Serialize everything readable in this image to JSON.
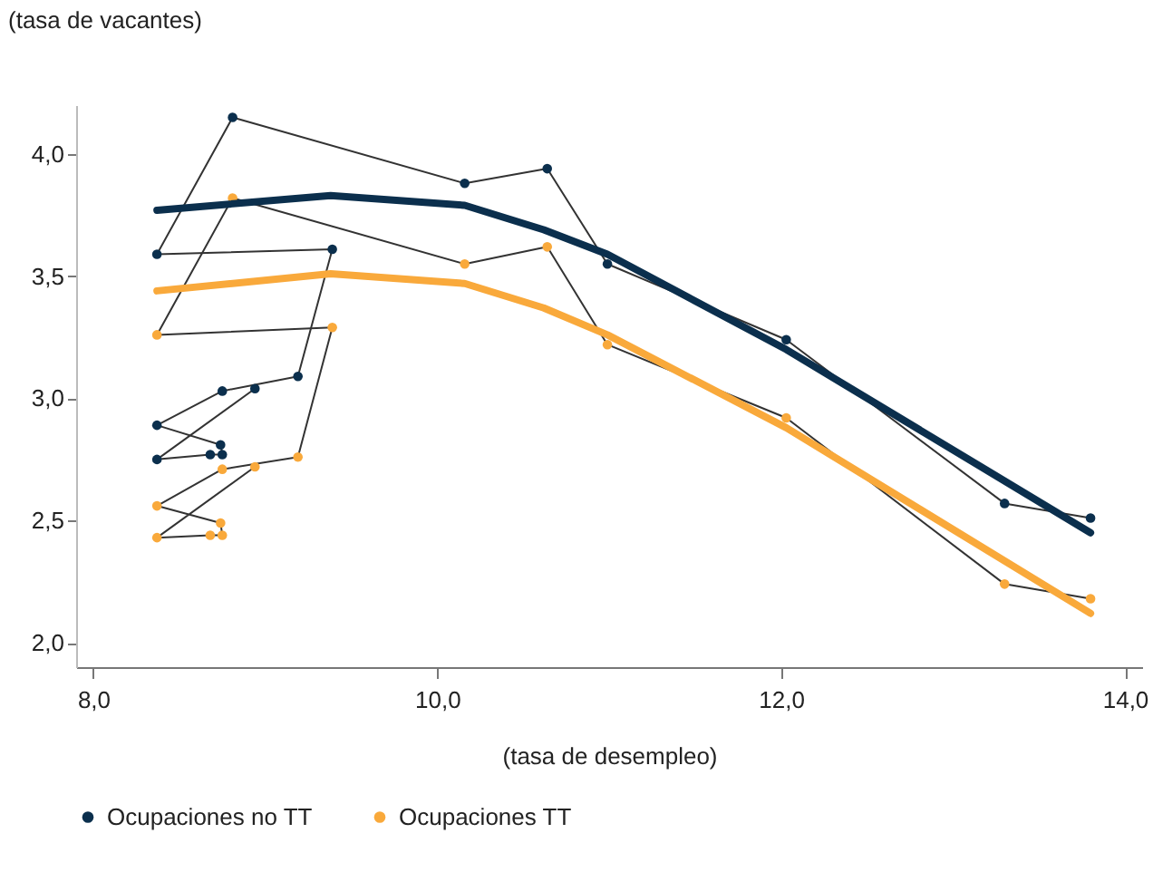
{
  "chart_data": {
    "type": "line",
    "xlabel": "(tasa de desempleo)",
    "ylabel": "(tasa de vacantes)",
    "xlim": [
      7.9,
      14.1
    ],
    "xticks": [
      {
        "value": 8,
        "label": "8,0"
      },
      {
        "value": 10,
        "label": "10,0"
      },
      {
        "value": 12,
        "label": "12,0"
      },
      {
        "value": 14,
        "label": "14,0"
      }
    ],
    "ylim": [
      1.9,
      4.2
    ],
    "yticks": [
      {
        "value": 2,
        "label": "2,0"
      },
      {
        "value": 2.5,
        "label": "2,5"
      },
      {
        "value": 3,
        "label": "3,0"
      },
      {
        "value": 3.5,
        "label": "3,5"
      },
      {
        "value": 4,
        "label": "4,0"
      }
    ],
    "grid": false,
    "legend": "bottom",
    "marker": "circle",
    "series": [
      {
        "name": "Ocupaciones no TT",
        "color": "#0b2f4d",
        "x": [
          13.8,
          13.3,
          12.03,
          10.99,
          10.64,
          10.16,
          8.81,
          8.37,
          9.39,
          9.19,
          8.75,
          8.37,
          8.74,
          8.75,
          8.68,
          8.37,
          8.94
        ],
        "values": [
          2.51,
          2.57,
          3.24,
          3.55,
          3.94,
          3.88,
          4.15,
          3.59,
          3.61,
          3.09,
          3.03,
          2.89,
          2.81,
          2.77,
          2.77,
          2.75,
          3.04
        ]
      },
      {
        "name": "Ocupaciones TT",
        "color": "#f9a93b",
        "x": [
          13.8,
          13.3,
          12.03,
          10.99,
          10.64,
          10.16,
          8.81,
          8.37,
          9.39,
          9.19,
          8.75,
          8.37,
          8.74,
          8.75,
          8.68,
          8.37,
          8.94
        ],
        "values": [
          2.18,
          2.24,
          2.92,
          3.22,
          3.62,
          3.55,
          3.82,
          3.26,
          3.29,
          2.76,
          2.71,
          2.56,
          2.49,
          2.44,
          2.44,
          2.43,
          2.72
        ]
      },
      {
        "color": "#0b2f4d",
        "marker": "none",
        "x": [
          8.37,
          9.38,
          10.16,
          10.62,
          10.99,
          12.03,
          13.8
        ],
        "values": [
          3.77,
          3.83,
          3.79,
          3.69,
          3.59,
          3.2,
          2.45
        ]
      },
      {
        "color": "#f9a93b",
        "marker": "none",
        "x": [
          8.37,
          9.38,
          10.16,
          10.62,
          10.99,
          12.03,
          13.8
        ],
        "values": [
          3.44,
          3.51,
          3.47,
          3.37,
          3.26,
          2.88,
          2.12
        ]
      }
    ]
  }
}
